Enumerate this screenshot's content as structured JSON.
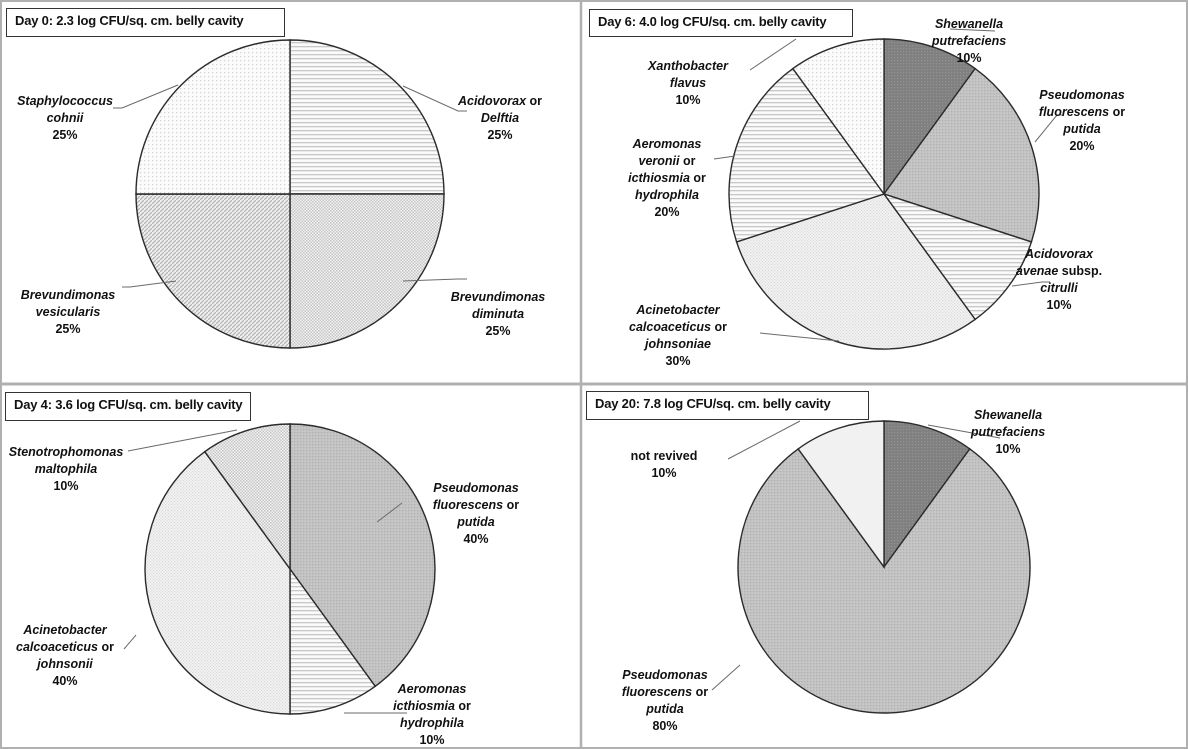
{
  "chart_data": [
    {
      "type": "pie",
      "title": "Day 0:  2.3 log CFU/sq. cm. belly cavity",
      "day": 0,
      "log_cfu": 2.3,
      "slices": [
        {
          "name": "Acidovorax or Delftia",
          "lines": [
            [
              "Acidovorax",
              true
            ],
            [
              " or",
              false
            ],
            [
              "|",
              false
            ],
            [
              "Delftia",
              true
            ]
          ],
          "value": 25,
          "label": "25%",
          "pattern": "hlines"
        },
        {
          "name": "Brevundimonas diminuta",
          "lines": [
            [
              "Brevundimonas",
              true
            ],
            [
              "|",
              false
            ],
            [
              "diminuta",
              true
            ]
          ],
          "value": 25,
          "label": "25%",
          "pattern": "checker"
        },
        {
          "name": "Brevundimonas vesicularis",
          "lines": [
            [
              "Brevundimonas",
              true
            ],
            [
              "|",
              false
            ],
            [
              "vesicularis",
              true
            ]
          ],
          "value": 25,
          "label": "25%",
          "pattern": "diag"
        },
        {
          "name": "Staphylococcus cohnii",
          "lines": [
            [
              "Staphylococcus",
              true
            ],
            [
              "|",
              false
            ],
            [
              "cohnii",
              true
            ]
          ],
          "value": 25,
          "label": "25%",
          "pattern": "dots"
        }
      ]
    },
    {
      "type": "pie",
      "title": "Day 6:  4.0 log CFU/sq. cm. belly cavity",
      "day": 6,
      "log_cfu": 4.0,
      "slices": [
        {
          "name": "Shewanella putrefaciens",
          "lines": [
            [
              "Shewanella",
              true
            ],
            [
              "|",
              false
            ],
            [
              "putrefaciens",
              true
            ]
          ],
          "value": 10,
          "label": "10%",
          "pattern": "dark"
        },
        {
          "name": "Pseudomonas fluorescens or putida",
          "lines": [
            [
              "Pseudomonas",
              true
            ],
            [
              "|",
              false
            ],
            [
              "fluorescens",
              true
            ],
            [
              " or",
              false
            ],
            [
              "|",
              false
            ],
            [
              "putida",
              true
            ]
          ],
          "value": 20,
          "label": "20%",
          "pattern": "mid"
        },
        {
          "name": "Acidovorax avenae subsp. citrulli",
          "lines": [
            [
              "Acidovorax",
              true
            ],
            [
              "|",
              false
            ],
            [
              "avenae",
              true
            ],
            [
              " subsp.",
              false
            ],
            [
              "|",
              false
            ],
            [
              "citrulli",
              true
            ]
          ],
          "value": 10,
          "label": "10%",
          "pattern": "hlines"
        },
        {
          "name": "Acinetobacter calcoaceticus or johnsoniae",
          "lines": [
            [
              "Acinetobacter",
              true
            ],
            [
              "|",
              false
            ],
            [
              "calcoaceticus",
              true
            ],
            [
              " or",
              false
            ],
            [
              "|",
              false
            ],
            [
              "johnsoniae",
              true
            ]
          ],
          "value": 30,
          "label": "30%",
          "pattern": "light"
        },
        {
          "name": "Aeromonas veronii or icthiosmia or hydrophila",
          "lines": [
            [
              "Aeromonas",
              true
            ],
            [
              "|",
              false
            ],
            [
              "veronii",
              true
            ],
            [
              " or",
              false
            ],
            [
              "|",
              false
            ],
            [
              "icthiosmia",
              true
            ],
            [
              " or",
              false
            ],
            [
              "|",
              false
            ],
            [
              "hydrophila",
              true
            ]
          ],
          "value": 20,
          "label": "20%",
          "pattern": "hlines"
        },
        {
          "name": "Xanthobacter flavus",
          "lines": [
            [
              "Xanthobacter",
              true
            ],
            [
              "|",
              false
            ],
            [
              "flavus",
              true
            ]
          ],
          "value": 10,
          "label": "10%",
          "pattern": "dots"
        }
      ]
    },
    {
      "type": "pie",
      "title": "Day 4:  3.6 log CFU/sq. cm. belly cavity",
      "day": 4,
      "log_cfu": 3.6,
      "slices": [
        {
          "name": "Pseudomonas fluorescens or putida",
          "lines": [
            [
              "Pseudomonas",
              true
            ],
            [
              "|",
              false
            ],
            [
              "fluorescens",
              true
            ],
            [
              " or",
              false
            ],
            [
              "|",
              false
            ],
            [
              "putida",
              true
            ]
          ],
          "value": 40,
          "label": "40%",
          "pattern": "mid"
        },
        {
          "name": "Aeromonas icthiosmia or hydrophila",
          "lines": [
            [
              "Aeromonas",
              true
            ],
            [
              "|",
              false
            ],
            [
              "icthiosmia",
              true
            ],
            [
              " or",
              false
            ],
            [
              "|",
              false
            ],
            [
              "hydrophila",
              true
            ]
          ],
          "value": 10,
          "label": "10%",
          "pattern": "hlines"
        },
        {
          "name": "Acinetobacter calcoaceticus or johnsonii",
          "lines": [
            [
              "Acinetobacter",
              true
            ],
            [
              "|",
              false
            ],
            [
              "calcoaceticus",
              true
            ],
            [
              " or",
              false
            ],
            [
              "|",
              false
            ],
            [
              "johnsonii",
              true
            ]
          ],
          "value": 40,
          "label": "40%",
          "pattern": "light"
        },
        {
          "name": "Stenotrophomonas maltophila",
          "lines": [
            [
              "Stenotrophomonas",
              true
            ],
            [
              "|",
              false
            ],
            [
              "maltophila",
              true
            ]
          ],
          "value": 10,
          "label": "10%",
          "pattern": "checker"
        }
      ]
    },
    {
      "type": "pie",
      "title": "Day 20:  7.8 log CFU/sq. cm. belly cavity",
      "day": 20,
      "log_cfu": 7.8,
      "slices": [
        {
          "name": "Shewanella putrefaciens",
          "lines": [
            [
              "Shewanella",
              true
            ],
            [
              "|",
              false
            ],
            [
              "putrefaciens",
              true
            ]
          ],
          "value": 10,
          "label": "10%",
          "pattern": "dark"
        },
        {
          "name": "Pseudomonas fluorescens or putida",
          "lines": [
            [
              "Pseudomonas",
              true
            ],
            [
              "|",
              false
            ],
            [
              "fluorescens",
              true
            ],
            [
              " or",
              false
            ],
            [
              "|",
              false
            ],
            [
              "putida",
              true
            ]
          ],
          "value": 80,
          "label": "80%",
          "pattern": "mid"
        },
        {
          "name": "not revived",
          "lines": [
            [
              "not revived",
              false
            ]
          ],
          "value": 10,
          "label": "10%",
          "pattern": "pale"
        }
      ]
    }
  ],
  "colors": {
    "dark": "#7d7d7d",
    "mid": "#c3c3c3",
    "pale": "#f0f0f0",
    "outline": "#2b2b2b",
    "panel_border": "#b0b0b0"
  }
}
